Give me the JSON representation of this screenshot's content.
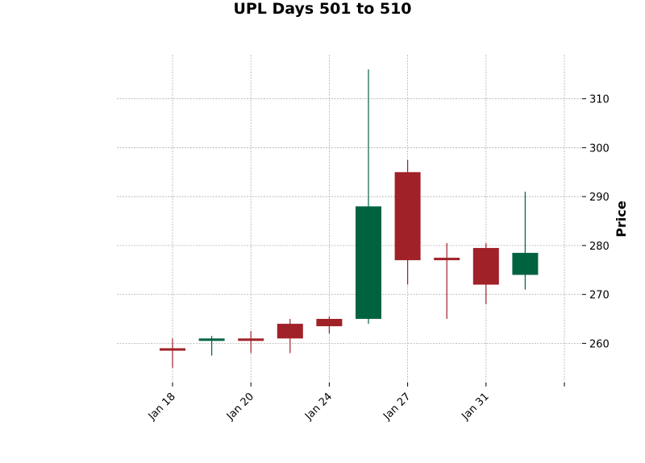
{
  "chart_data": {
    "type": "candlestick",
    "title": "UPL Days 501 to 510",
    "xlabel": "",
    "ylabel": "Price",
    "ylim": [
      252,
      319
    ],
    "y_ticks": [
      260,
      270,
      280,
      290,
      300,
      310
    ],
    "x_tick_labels": [
      "Jan 18",
      "Jan 20",
      "Jan 24",
      "Jan 27",
      "Jan 31",
      ""
    ],
    "grid": true,
    "up_color": "#006340",
    "down_color": "#a02128",
    "candles": [
      {
        "open": 259.0,
        "high": 261.0,
        "low": 255.0,
        "close": 258.5
      },
      {
        "open": 260.5,
        "high": 261.5,
        "low": 257.5,
        "close": 261.0
      },
      {
        "open": 261.0,
        "high": 262.5,
        "low": 258.0,
        "close": 260.5
      },
      {
        "open": 264.0,
        "high": 265.0,
        "low": 258.0,
        "close": 261.0
      },
      {
        "open": 265.0,
        "high": 265.5,
        "low": 262.0,
        "close": 263.5
      },
      {
        "open": 265.0,
        "high": 316.0,
        "low": 264.0,
        "close": 288.0
      },
      {
        "open": 295.0,
        "high": 297.5,
        "low": 272.0,
        "close": 277.0
      },
      {
        "open": 277.5,
        "high": 280.5,
        "low": 265.0,
        "close": 277.0
      },
      {
        "open": 279.5,
        "high": 280.5,
        "low": 268.0,
        "close": 272.0
      },
      {
        "open": 274.0,
        "high": 291.0,
        "low": 271.0,
        "close": 278.5
      }
    ]
  }
}
